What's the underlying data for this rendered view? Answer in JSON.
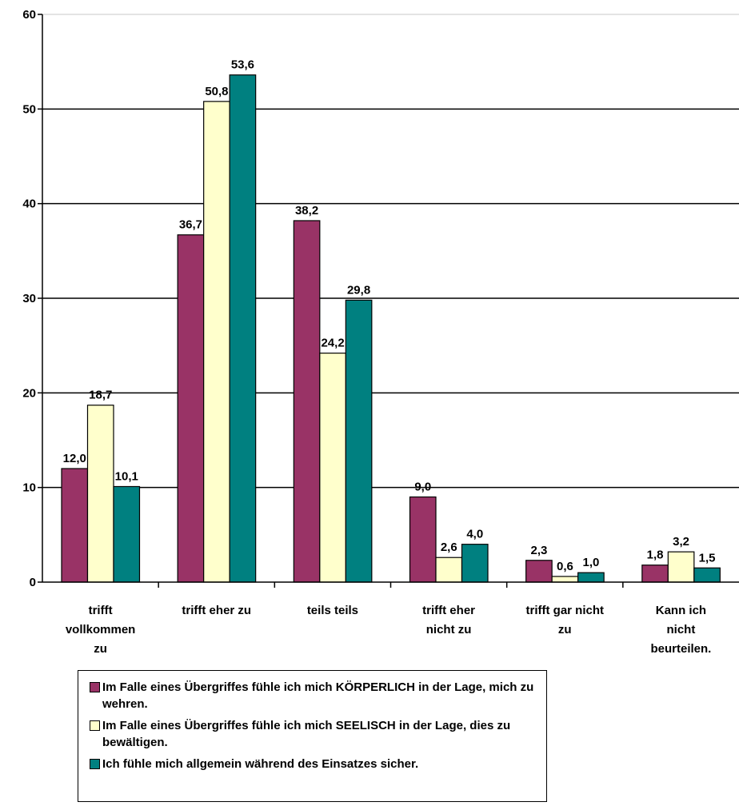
{
  "chart_data": {
    "type": "bar",
    "categories": [
      [
        "trifft",
        "vollkommen",
        "zu"
      ],
      [
        "trifft eher zu"
      ],
      [
        "teils teils"
      ],
      [
        "trifft eher",
        "nicht zu"
      ],
      [
        "trifft gar nicht",
        "zu"
      ],
      [
        "Kann ich",
        "nicht",
        "beurteilen."
      ]
    ],
    "series": [
      {
        "name": "Im Falle eines Übergriffes fühle ich mich KÖRPERLICH in der Lage, mich zu wehren.",
        "values": [
          12.0,
          36.7,
          38.2,
          9.0,
          2.3,
          1.8
        ],
        "labels": [
          "12,0",
          "36,7",
          "38,2",
          "9,0",
          "2,3",
          "1,8"
        ],
        "color": "#993366"
      },
      {
        "name": "Im Falle eines Übergriffes fühle ich mich SEELISCH in der Lage, dies zu bewältigen.",
        "values": [
          18.7,
          50.8,
          24.2,
          2.6,
          0.6,
          3.2
        ],
        "labels": [
          "18,7",
          "50,8",
          "24,2",
          "2,6",
          "0,6",
          "3,2"
        ],
        "color": "#FFFFCC"
      },
      {
        "name": "Ich fühle mich allgemein während des Einsatzes sicher.",
        "values": [
          10.1,
          53.6,
          29.8,
          4.0,
          1.0,
          1.5
        ],
        "labels": [
          "10,1",
          "53,6",
          "29,8",
          "4,0",
          "1,0",
          "1,5"
        ],
        "color": "#008080"
      }
    ],
    "yticks": [
      "0",
      "10",
      "20",
      "30",
      "40",
      "50",
      "60"
    ],
    "ylim": [
      0,
      60
    ],
    "grid": true,
    "legend_position": "bottom"
  }
}
